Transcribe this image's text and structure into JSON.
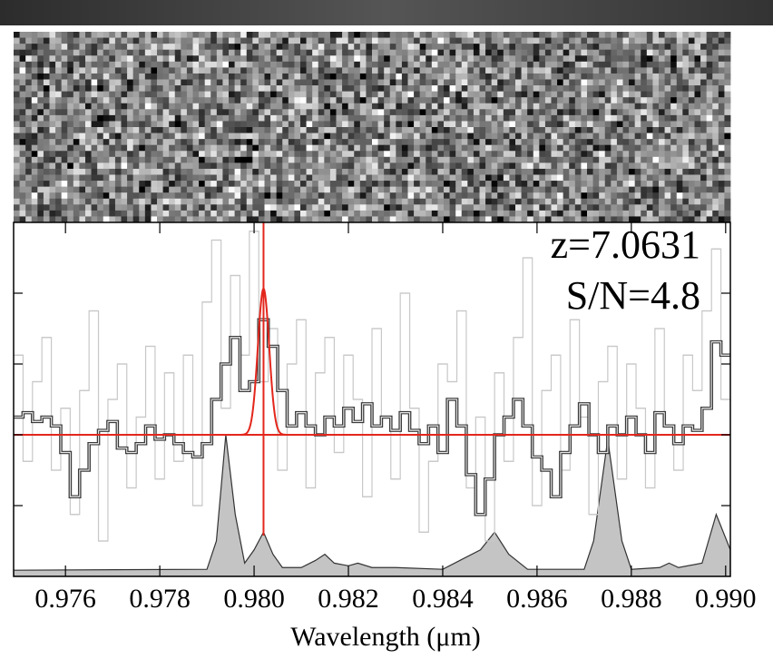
{
  "chart_data": {
    "type": "spectrum",
    "xlabel": "Wavelength (μm)",
    "annotations": [
      "z=7.0631",
      "S/N=4.8"
    ],
    "xlim": [
      0.9749,
      0.9901
    ],
    "ylim": [
      -1.6,
      2.4
    ],
    "xticks": [
      0.976,
      0.978,
      {
        "value": 0.98,
        "label": "0.980"
      },
      0.982,
      0.984,
      0.986,
      0.988,
      {
        "value": 0.99,
        "label": "0.990"
      }
    ],
    "yticks": [
      -0.8,
      0,
      0.8,
      1.6
    ],
    "x": [
      0.975,
      0.9752,
      0.9754,
      0.9756,
      0.9758,
      0.976,
      0.9762,
      0.9764,
      0.9766,
      0.9768,
      0.977,
      0.9772,
      0.9774,
      0.9776,
      0.9778,
      0.978,
      0.9782,
      0.9784,
      0.9786,
      0.9788,
      0.979,
      0.9792,
      0.9794,
      0.9796,
      0.9798,
      0.98,
      0.9802,
      0.9804,
      0.9806,
      0.9808,
      0.981,
      0.9812,
      0.9814,
      0.9816,
      0.9818,
      0.982,
      0.9822,
      0.9824,
      0.9826,
      0.9828,
      0.983,
      0.9832,
      0.9834,
      0.9836,
      0.9838,
      0.984,
      0.9842,
      0.9844,
      0.9846,
      0.9848,
      0.985,
      0.9852,
      0.9854,
      0.9856,
      0.9858,
      0.986,
      0.9862,
      0.9864,
      0.9866,
      0.9868,
      0.987,
      0.9872,
      0.9874,
      0.9876,
      0.9878,
      0.988,
      0.9882,
      0.9884,
      0.9886,
      0.9888,
      0.989,
      0.9892,
      0.9894,
      0.9896,
      0.9898,
      0.99
    ],
    "series": [
      {
        "color": "#c8c8c8",
        "values": [
          0.9,
          -0.3,
          0.6,
          1.1,
          -0.4,
          0.3,
          -0.9,
          0.5,
          1.4,
          -1.2,
          0.4,
          0.8,
          -0.6,
          0.2,
          1.0,
          -0.5,
          0.7,
          -0.3,
          0.9,
          -0.8,
          1.5,
          2.2,
          0.3,
          1.8,
          0.9,
          2.3,
          0.6,
          1.2,
          -0.4,
          0.8,
          1.3,
          -0.6,
          0.7,
          1.1,
          -0.2,
          0.9,
          0.4,
          -0.7,
          1.2,
          0.2,
          -0.5,
          1.6,
          0.3,
          -1.1,
          -0.3,
          0.8,
          0.6,
          1.4,
          -0.6,
          0.2,
          -1.2,
          0.7,
          -0.3,
          1.1,
          2.0,
          -0.8,
          0.5,
          0.9,
          -0.4,
          1.3,
          0.2,
          -0.9,
          0.6,
          1.0,
          -0.5,
          0.8,
          0.3,
          -0.6,
          1.2,
          0.1,
          -0.4,
          0.9,
          0.5,
          1.4,
          2.1,
          0.4
        ]
      },
      {
        "color": "#3a3a3a",
        "values": [
          0.2,
          0.25,
          0.15,
          0.2,
          0.1,
          -0.2,
          -0.7,
          -0.4,
          -0.1,
          0.05,
          0.15,
          -0.15,
          -0.2,
          -0.1,
          0.1,
          -0.05,
          0,
          -0.1,
          -0.2,
          -0.25,
          -0.1,
          0.4,
          0.8,
          1.1,
          0.5,
          0.6,
          1.3,
          1.0,
          0.5,
          0.1,
          0.25,
          0.1,
          0,
          0.2,
          0.1,
          0.3,
          0.15,
          0.35,
          0.1,
          0.2,
          0.05,
          0.25,
          0.05,
          -0.1,
          0.1,
          -0.2,
          0.4,
          0.1,
          -0.45,
          -0.9,
          -0.5,
          0,
          0.2,
          0.4,
          0.1,
          -0.25,
          -0.4,
          -0.7,
          -0.2,
          0.1,
          0.35,
          0,
          -0.2,
          0.1,
          0,
          0.2,
          0,
          -0.2,
          0.25,
          0.1,
          -0.1,
          0.1,
          0.05,
          0.3,
          1.05,
          0.9
        ]
      }
    ],
    "sky": {
      "color": "#c4c4c4",
      "x": [
        0.9749,
        0.979,
        0.9792,
        0.9794,
        0.9796,
        0.9798,
        0.98,
        0.9802,
        0.9804,
        0.9806,
        0.981,
        0.9813,
        0.9815,
        0.9817,
        0.982,
        0.9822,
        0.9825,
        0.983,
        0.984,
        0.9848,
        0.9851,
        0.9854,
        0.9858,
        0.987,
        0.9872,
        0.9875,
        0.9878,
        0.988,
        0.9886,
        0.9888,
        0.989,
        0.9895,
        0.9898,
        0.9901
      ],
      "values": [
        -1.53,
        -1.52,
        -1.2,
        0.0,
        -0.9,
        -1.45,
        -1.3,
        -1.1,
        -1.35,
        -1.5,
        -1.5,
        -1.42,
        -1.35,
        -1.45,
        -1.48,
        -1.45,
        -1.5,
        -1.5,
        -1.52,
        -1.3,
        -1.1,
        -1.35,
        -1.52,
        -1.52,
        -1.2,
        -0.05,
        -1.2,
        -1.52,
        -1.5,
        -1.45,
        -1.5,
        -1.45,
        -0.9,
        -1.3
      ]
    },
    "fit": {
      "color": "#e3261c",
      "center": 0.9802,
      "amplitude": 1.65,
      "sigma": 0.00012,
      "continuum": 0
    }
  }
}
